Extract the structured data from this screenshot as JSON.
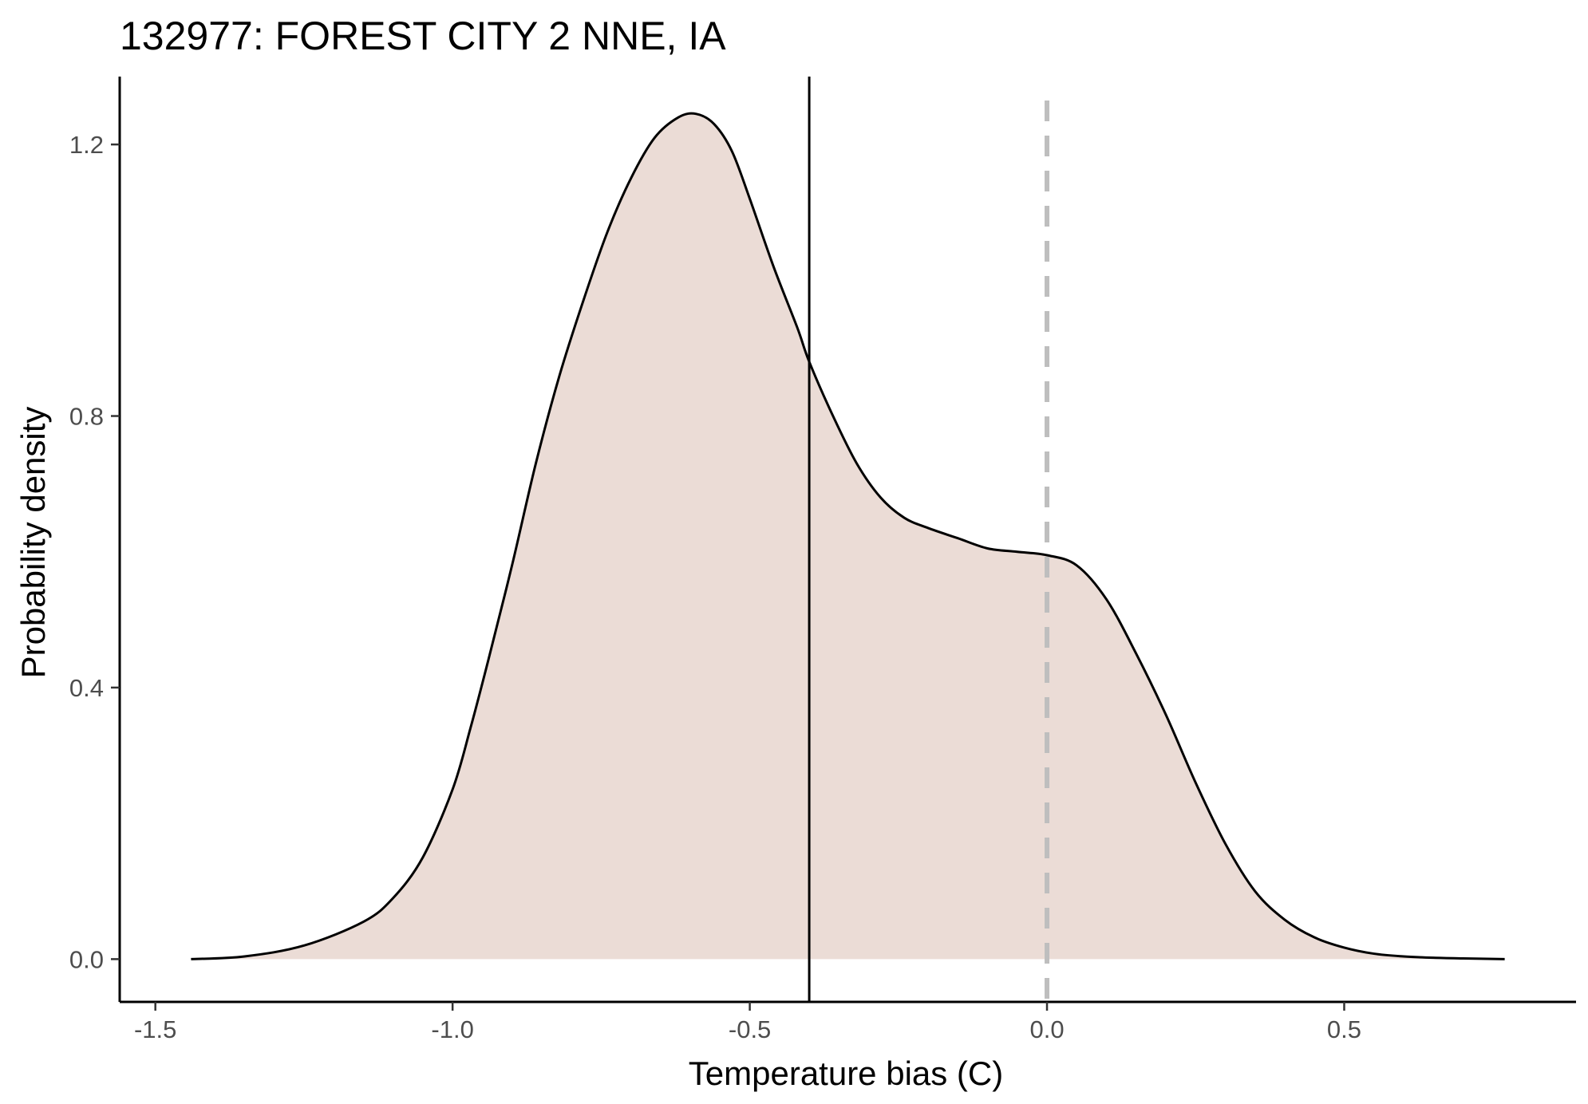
{
  "chart_data": {
    "type": "area",
    "title": "132977: FOREST CITY 2 NNE, IA",
    "xlabel": "Temperature bias (C)",
    "ylabel": "Probability density",
    "xlim": [
      -1.56,
      0.89
    ],
    "ylim": [
      -0.063,
      1.3
    ],
    "x_ticks": [
      -1.5,
      -1.0,
      -0.5,
      0.0,
      0.5
    ],
    "x_tick_labels": [
      "-1.5",
      "-1.0",
      "-0.5",
      "0.0",
      "0.5"
    ],
    "y_ticks": [
      0.0,
      0.4,
      0.8,
      1.2
    ],
    "y_tick_labels": [
      "0.0",
      "0.4",
      "0.8",
      "1.2"
    ],
    "grid": false,
    "legend": "none",
    "fill_color": "#ebdcd6",
    "line_color": "#000000",
    "series": [
      {
        "x": [
          -1.44,
          -1.35,
          -1.25,
          -1.15,
          -1.1,
          -1.05,
          -1.0,
          -0.97,
          -0.94,
          -0.9,
          -0.86,
          -0.82,
          -0.78,
          -0.74,
          -0.7,
          -0.66,
          -0.62,
          -0.59,
          -0.56,
          -0.53,
          -0.5,
          -0.46,
          -0.42,
          -0.4,
          -0.36,
          -0.32,
          -0.28,
          -0.24,
          -0.2,
          -0.15,
          -0.1,
          -0.05,
          0.0,
          0.05,
          0.1,
          0.15,
          0.2,
          0.25,
          0.3,
          0.35,
          0.4,
          0.45,
          0.5,
          0.55,
          0.6,
          0.65,
          0.7,
          0.77
        ],
        "y": [
          0.0,
          0.004,
          0.02,
          0.055,
          0.09,
          0.15,
          0.25,
          0.34,
          0.44,
          0.58,
          0.73,
          0.86,
          0.97,
          1.07,
          1.15,
          1.21,
          1.24,
          1.245,
          1.23,
          1.19,
          1.12,
          1.02,
          0.93,
          0.88,
          0.8,
          0.73,
          0.68,
          0.65,
          0.635,
          0.62,
          0.605,
          0.6,
          0.595,
          0.58,
          0.53,
          0.45,
          0.36,
          0.26,
          0.17,
          0.1,
          0.058,
          0.032,
          0.017,
          0.008,
          0.004,
          0.002,
          0.001,
          0.0
        ]
      }
    ],
    "reference_lines": [
      {
        "x": -0.4,
        "style": "solid",
        "color": "#000000"
      },
      {
        "x": 0.0,
        "style": "dashed",
        "color": "#bebebe"
      }
    ]
  }
}
